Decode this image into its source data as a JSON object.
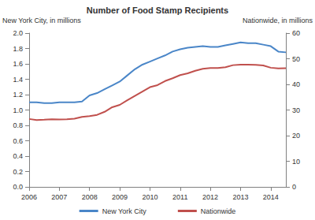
{
  "chart_data": {
    "type": "line",
    "title": "Number of Food Stamp Recipients",
    "y_label": "New York City, in millions",
    "y2_label": "Nationwide, in millions",
    "x": [
      2006,
      2006.25,
      2006.5,
      2006.75,
      2007,
      2007.25,
      2007.5,
      2007.75,
      2008,
      2008.25,
      2008.5,
      2008.75,
      2009,
      2009.25,
      2009.5,
      2009.75,
      2010,
      2010.25,
      2010.5,
      2010.75,
      2011,
      2011.25,
      2011.5,
      2011.75,
      2012,
      2012.25,
      2012.5,
      2012.75,
      2013,
      2013.25,
      2013.5,
      2013.75,
      2014,
      2014.25,
      2014.5
    ],
    "series": [
      {
        "name": "New York City",
        "color": "#4a86c8",
        "values": [
          1.1,
          1.1,
          1.09,
          1.09,
          1.1,
          1.1,
          1.1,
          1.11,
          1.19,
          1.22,
          1.27,
          1.32,
          1.37,
          1.45,
          1.53,
          1.59,
          1.63,
          1.67,
          1.71,
          1.76,
          1.79,
          1.81,
          1.82,
          1.83,
          1.82,
          1.82,
          1.84,
          1.86,
          1.88,
          1.87,
          1.87,
          1.85,
          1.83,
          1.76,
          1.75
        ]
      },
      {
        "name": "Nationwide",
        "color": "#c0504d",
        "axis": "y2",
        "values": [
          26.5,
          26.1,
          26.2,
          26.4,
          26.3,
          26.4,
          26.6,
          27.3,
          27.6,
          28.1,
          29.3,
          31.1,
          32.0,
          33.8,
          35.5,
          37.2,
          38.9,
          39.7,
          41.3,
          42.4,
          43.6,
          44.3,
          45.3,
          46.1,
          46.4,
          46.4,
          46.7,
          47.5,
          47.7,
          47.7,
          47.6,
          47.4,
          46.5,
          46.2,
          46.3
        ]
      }
    ],
    "xlim": [
      2006,
      2014.5
    ],
    "xticks": [
      2006,
      2007,
      2008,
      2009,
      2010,
      2011,
      2012,
      2013,
      2014
    ],
    "ylim": [
      0,
      2
    ],
    "yticks": [
      {
        "value": 0,
        "label": "0.0"
      },
      0.2,
      0.4,
      0.6,
      0.8,
      {
        "value": 1,
        "label": "1.0"
      },
      1.2,
      1.4,
      1.6,
      1.8,
      {
        "value": 2,
        "label": "2.0"
      }
    ],
    "y2lim": [
      0,
      60
    ],
    "y2ticks": [
      0,
      10,
      20,
      30,
      40,
      50,
      60
    ],
    "grid": false,
    "legend": "bottom"
  }
}
